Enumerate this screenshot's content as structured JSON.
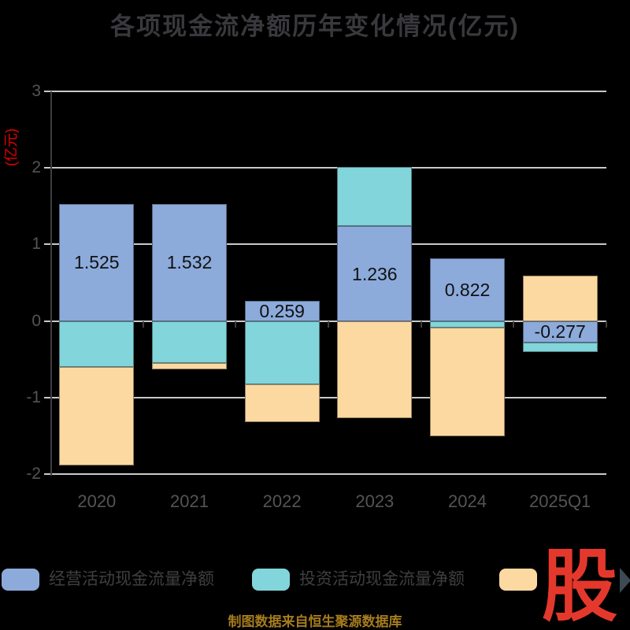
{
  "title": "各项现金流净额历年变化情况(亿元)",
  "caption": "制图数据来自恒生聚源数据库",
  "logo": {
    "text": "股"
  },
  "colors": {
    "background": "#000000",
    "title": "#39393D",
    "tick_label": "#545454",
    "gridline": "#C9C9C9",
    "axis_line": "#3E3E3E",
    "y_unit_label": "#E60000",
    "bar_label": "#111111",
    "caption": "#A67C1E",
    "legend_text": "#3F3F3F",
    "logo_red": "#E5382C",
    "logo_arrow": "#3D4A54"
  },
  "chart_data": {
    "type": "bar",
    "stacked": true,
    "title": "各项现金流净额历年变化情况(亿元)",
    "ylabel": "(亿元)",
    "xlabel": "",
    "categories": [
      "2020",
      "2021",
      "2022",
      "2023",
      "2024",
      "2025Q1"
    ],
    "series": [
      {
        "name": "经营活动现金流量净额",
        "color": "#8CABDB",
        "values": [
          1.525,
          1.532,
          0.259,
          1.236,
          0.822,
          -0.277
        ]
      },
      {
        "name": "投资活动现金流量净额",
        "color": "#82D5DA",
        "values": [
          -0.6,
          -0.55,
          -0.83,
          0.78,
          -0.09,
          -0.13
        ]
      },
      {
        "name": "",
        "color": "#FBD9A1",
        "values": [
          -1.29,
          -0.08,
          -0.49,
          -1.27,
          -1.42,
          0.59
        ]
      }
    ],
    "bar_labels": [
      "1.525",
      "1.532",
      "0.259",
      "1.236",
      "0.822",
      "-0.277"
    ],
    "ylim": [
      -2,
      3
    ],
    "yticks": [
      3,
      2,
      1,
      0,
      -1,
      -2
    ],
    "grid": true,
    "legend_position": "bottom"
  },
  "legend": {
    "items": [
      {
        "label": "经营活动现金流量净额",
        "color": "#8CABDB"
      },
      {
        "label": "投资活动现金流量净额",
        "color": "#82D5DA"
      },
      {
        "label": "",
        "color": "#FBD9A1"
      }
    ]
  }
}
